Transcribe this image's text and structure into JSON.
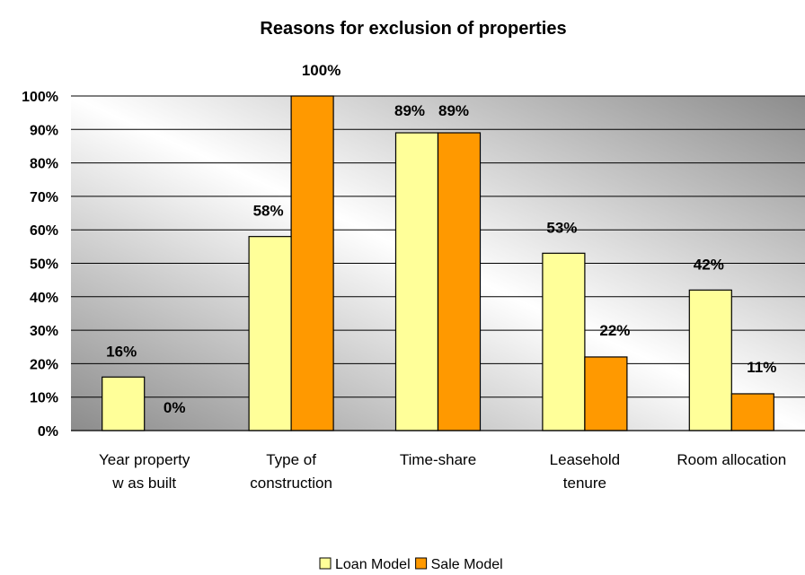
{
  "chart_data": {
    "type": "bar",
    "title": "Reasons for exclusion of properties",
    "categories": [
      [
        "Year property",
        "w as built"
      ],
      [
        "Type of",
        "construction"
      ],
      [
        "Time-share"
      ],
      [
        "Leasehold",
        "tenure"
      ],
      [
        "Room allocation"
      ]
    ],
    "series": [
      {
        "name": "Loan Model",
        "color": "#ffff99",
        "values": [
          16,
          58,
          89,
          53,
          42
        ],
        "labels": [
          "16%",
          "58%",
          "89%",
          "53%",
          "42%"
        ]
      },
      {
        "name": "Sale Model",
        "color": "#ff9900",
        "values": [
          0,
          100,
          89,
          22,
          11
        ],
        "labels": [
          "0%",
          "100%",
          "89%",
          "22%",
          "11%"
        ]
      }
    ],
    "ylim": [
      0,
      100
    ],
    "yticks": [
      "0%",
      "10%",
      "20%",
      "30%",
      "40%",
      "50%",
      "60%",
      "70%",
      "80%",
      "90%",
      "100%"
    ],
    "xlabel": "",
    "ylabel": "",
    "grid": true,
    "legend_position": "bottom"
  }
}
